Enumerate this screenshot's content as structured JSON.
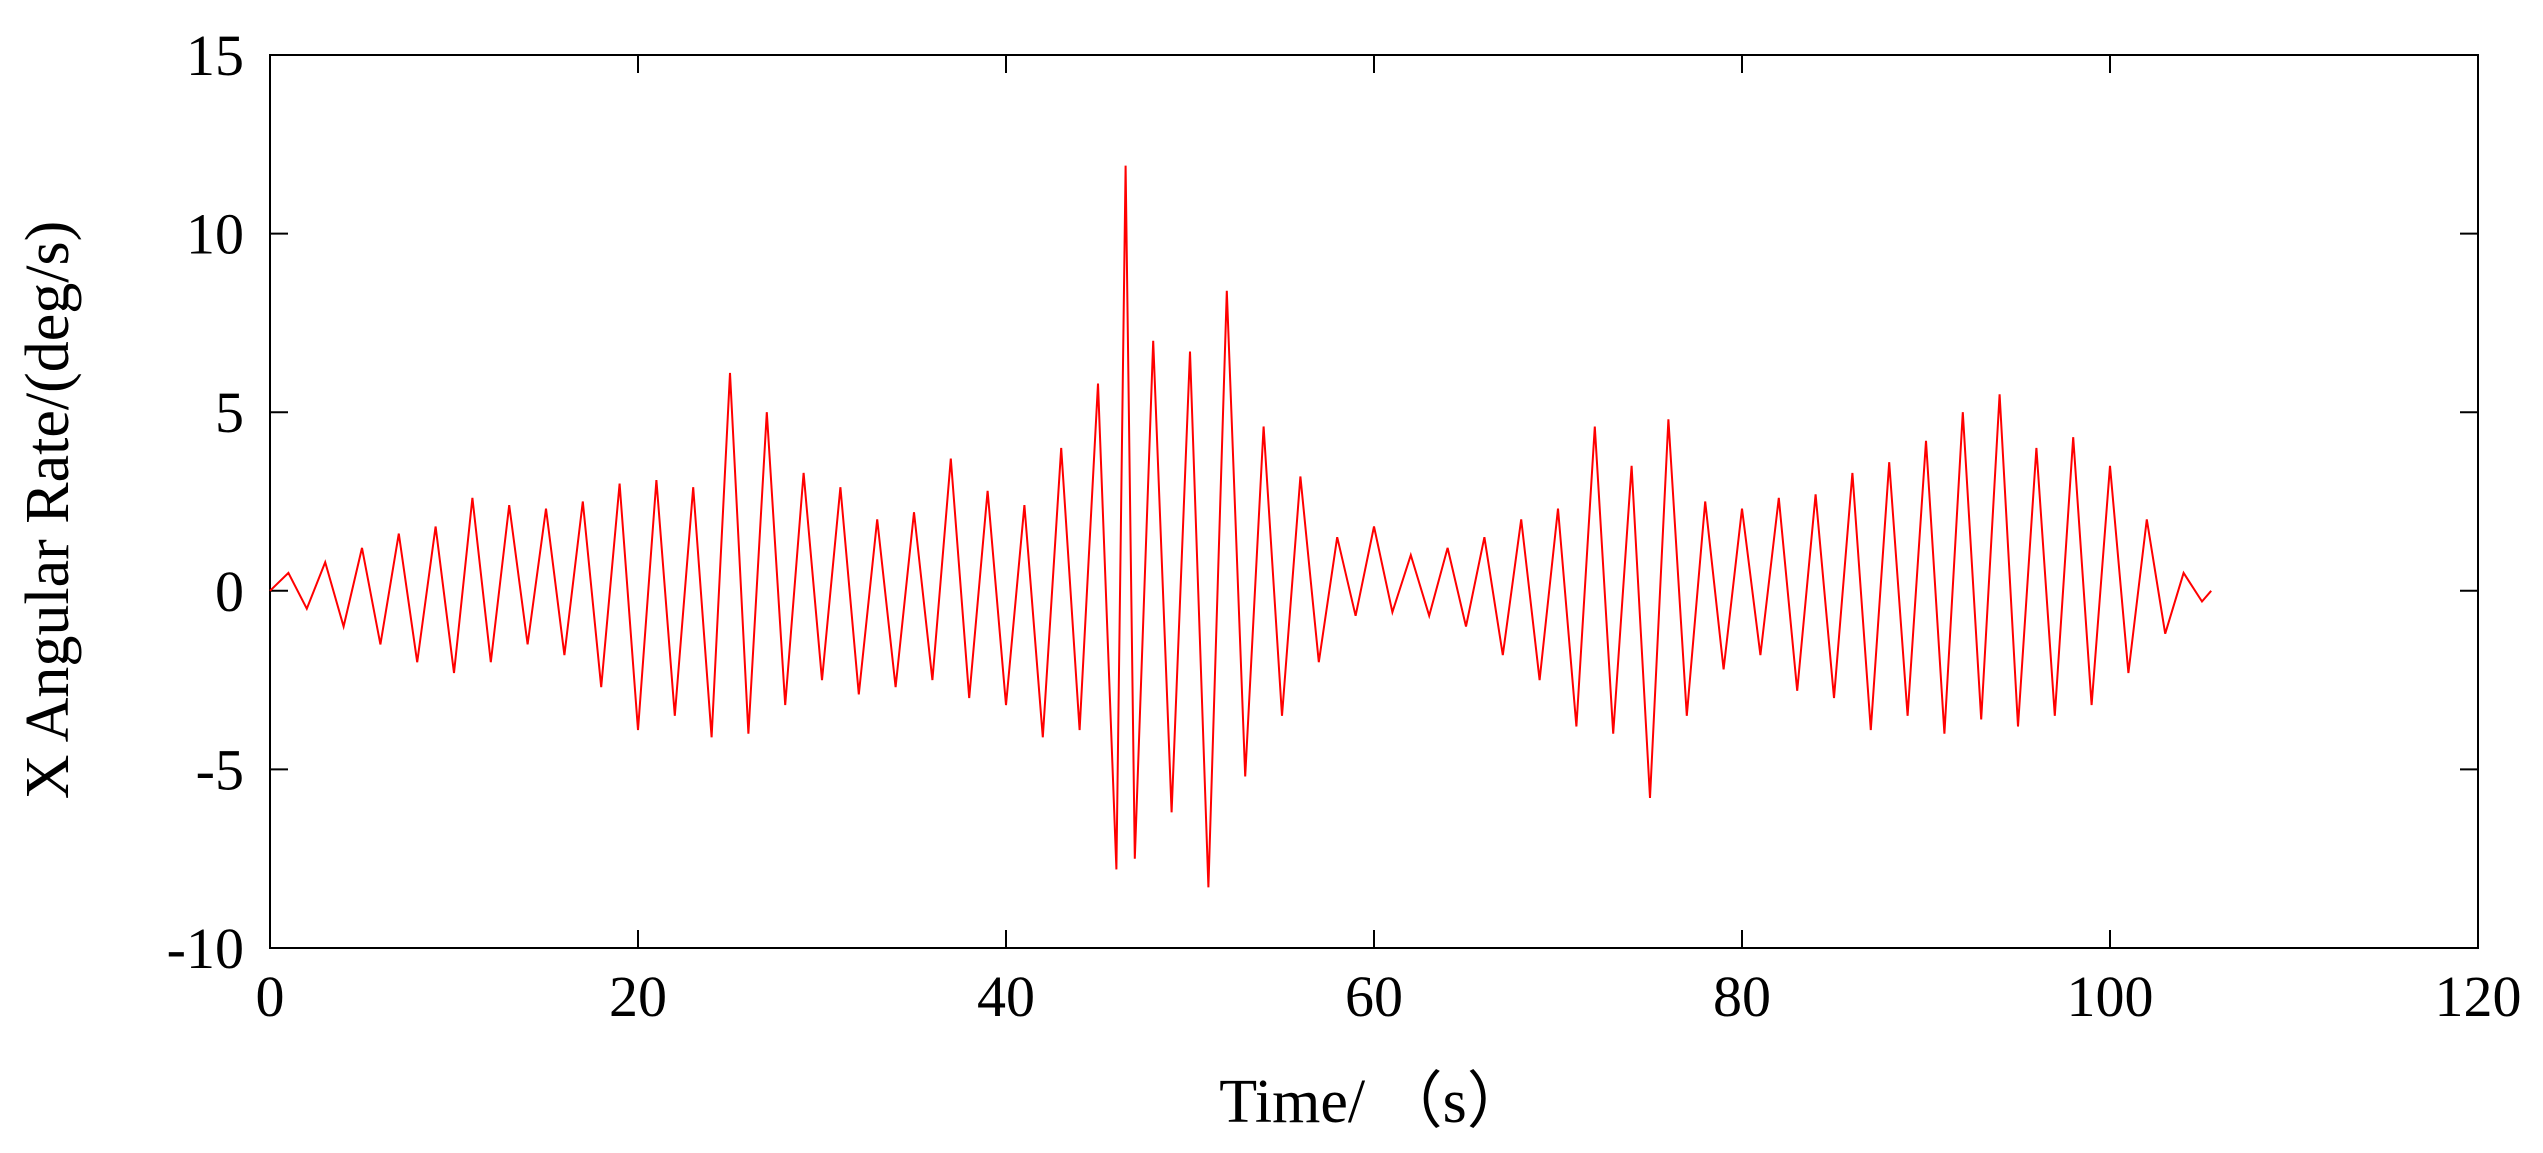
{
  "chart_data": {
    "type": "line",
    "title": "",
    "xlabel": "Time/ （s）",
    "ylabel": "X Angular Rate/(deg/s)",
    "xlim": [
      0,
      120
    ],
    "ylim": [
      -10,
      15
    ],
    "xticks": [
      0,
      20,
      40,
      60,
      80,
      100,
      120
    ],
    "yticks": [
      -10,
      -5,
      0,
      5,
      10,
      15
    ],
    "xtick_labels": [
      "0",
      "20",
      "40",
      "60",
      "80",
      "100",
      "120"
    ],
    "ytick_labels": [
      "-10",
      "-5",
      "0",
      "5",
      "10",
      "15"
    ],
    "grid": false,
    "legend": "none",
    "line_color": "#ff0000",
    "series": [
      {
        "x": [
          0,
          1,
          2,
          3,
          4,
          5,
          6,
          7,
          8,
          9,
          10,
          11,
          12,
          13,
          14,
          15,
          16,
          17,
          18,
          19,
          20,
          21,
          22,
          23,
          24,
          25,
          26,
          27,
          28,
          29,
          30,
          31,
          32,
          33,
          34,
          35,
          36,
          37,
          38,
          39,
          40,
          41,
          42,
          43,
          44,
          45,
          46,
          46.5,
          47,
          48,
          49,
          50,
          51,
          52,
          53,
          54,
          55,
          56,
          57,
          58,
          59,
          60,
          61,
          62,
          63,
          64,
          65,
          66,
          67,
          68,
          69,
          70,
          71,
          72,
          73,
          74,
          75,
          76,
          77,
          78,
          79,
          80,
          81,
          82,
          83,
          84,
          85,
          86,
          87,
          88,
          89,
          90,
          91,
          92,
          93,
          94,
          95,
          96,
          97,
          98,
          99,
          100,
          101,
          102,
          103,
          104,
          105,
          105.5
        ],
        "y": [
          0,
          0.5,
          -0.5,
          0.8,
          -1.0,
          1.2,
          -1.5,
          1.6,
          -2.0,
          1.8,
          -2.3,
          2.6,
          -2.0,
          2.4,
          -1.5,
          2.3,
          -1.8,
          2.5,
          -2.7,
          3.0,
          -3.9,
          3.1,
          -3.5,
          2.9,
          -4.1,
          6.1,
          -4.0,
          5.0,
          -3.2,
          3.3,
          -2.5,
          2.9,
          -2.9,
          2.0,
          -2.7,
          2.2,
          -2.5,
          3.7,
          -3.0,
          2.8,
          -3.2,
          2.4,
          -4.1,
          4.0,
          -3.9,
          5.8,
          -7.8,
          11.9,
          -7.5,
          7.0,
          -6.2,
          6.7,
          -8.3,
          8.4,
          -5.2,
          4.6,
          -3.5,
          3.2,
          -2.0,
          1.5,
          -0.7,
          1.8,
          -0.6,
          1.0,
          -0.7,
          1.2,
          -1.0,
          1.5,
          -1.8,
          2.0,
          -2.5,
          2.3,
          -3.8,
          4.6,
          -4.0,
          3.5,
          -5.8,
          4.8,
          -3.5,
          2.5,
          -2.2,
          2.3,
          -1.8,
          2.6,
          -2.8,
          2.7,
          -3.0,
          3.3,
          -3.9,
          3.6,
          -3.5,
          4.2,
          -4.0,
          5.0,
          -3.6,
          5.5,
          -3.8,
          4.0,
          -3.5,
          4.3,
          -3.2,
          3.5,
          -2.3,
          2.0,
          -1.2,
          0.5,
          -0.3,
          0
        ]
      }
    ]
  }
}
